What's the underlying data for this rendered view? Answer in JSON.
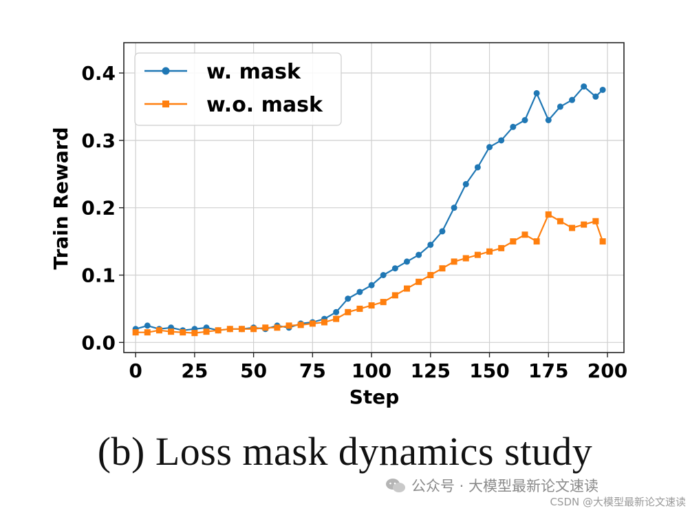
{
  "chart_data": {
    "type": "line",
    "title": "",
    "xlabel": "Step",
    "ylabel": "Train Reward",
    "xlim": [
      -5,
      207
    ],
    "ylim": [
      -0.015,
      0.445
    ],
    "xticks": [
      0,
      25,
      50,
      75,
      100,
      125,
      150,
      175,
      200
    ],
    "yticks": [
      0.0,
      0.1,
      0.2,
      0.3,
      0.4
    ],
    "ytick_labels": [
      "0.0",
      "0.1",
      "0.2",
      "0.3",
      "0.4"
    ],
    "grid": true,
    "legend_position": "top-left",
    "series": [
      {
        "name": "w. mask",
        "color": "#1f77b4",
        "marker": "circle",
        "x": [
          0,
          5,
          10,
          15,
          20,
          25,
          30,
          35,
          40,
          45,
          50,
          55,
          60,
          65,
          70,
          75,
          80,
          85,
          90,
          95,
          100,
          105,
          110,
          115,
          120,
          125,
          130,
          135,
          140,
          145,
          150,
          155,
          160,
          165,
          170,
          175,
          180,
          185,
          190,
          195,
          198
        ],
        "values": [
          0.02,
          0.025,
          0.02,
          0.022,
          0.018,
          0.02,
          0.022,
          0.018,
          0.02,
          0.02,
          0.022,
          0.02,
          0.025,
          0.022,
          0.028,
          0.03,
          0.035,
          0.045,
          0.065,
          0.075,
          0.085,
          0.1,
          0.11,
          0.12,
          0.13,
          0.145,
          0.165,
          0.2,
          0.235,
          0.26,
          0.29,
          0.3,
          0.32,
          0.33,
          0.37,
          0.33,
          0.35,
          0.36,
          0.38,
          0.365,
          0.375
        ]
      },
      {
        "name": "w.o. mask",
        "color": "#ff7f0e",
        "marker": "square",
        "x": [
          0,
          5,
          10,
          15,
          20,
          25,
          30,
          35,
          40,
          45,
          50,
          55,
          60,
          65,
          70,
          75,
          80,
          85,
          90,
          95,
          100,
          105,
          110,
          115,
          120,
          125,
          130,
          135,
          140,
          145,
          150,
          155,
          160,
          165,
          170,
          175,
          180,
          185,
          190,
          195,
          198
        ],
        "values": [
          0.015,
          0.015,
          0.018,
          0.016,
          0.015,
          0.014,
          0.016,
          0.018,
          0.02,
          0.02,
          0.02,
          0.022,
          0.022,
          0.025,
          0.026,
          0.028,
          0.03,
          0.035,
          0.045,
          0.05,
          0.055,
          0.06,
          0.07,
          0.08,
          0.09,
          0.1,
          0.11,
          0.12,
          0.125,
          0.13,
          0.135,
          0.14,
          0.15,
          0.16,
          0.15,
          0.19,
          0.18,
          0.17,
          0.175,
          0.18,
          0.15
        ]
      }
    ]
  },
  "caption": "(b)  Loss mask dynamics study",
  "watermark": {
    "text": "公众号 · 大模型最新论文速读",
    "csdn": "CSDN @大模型最新论文速读"
  }
}
